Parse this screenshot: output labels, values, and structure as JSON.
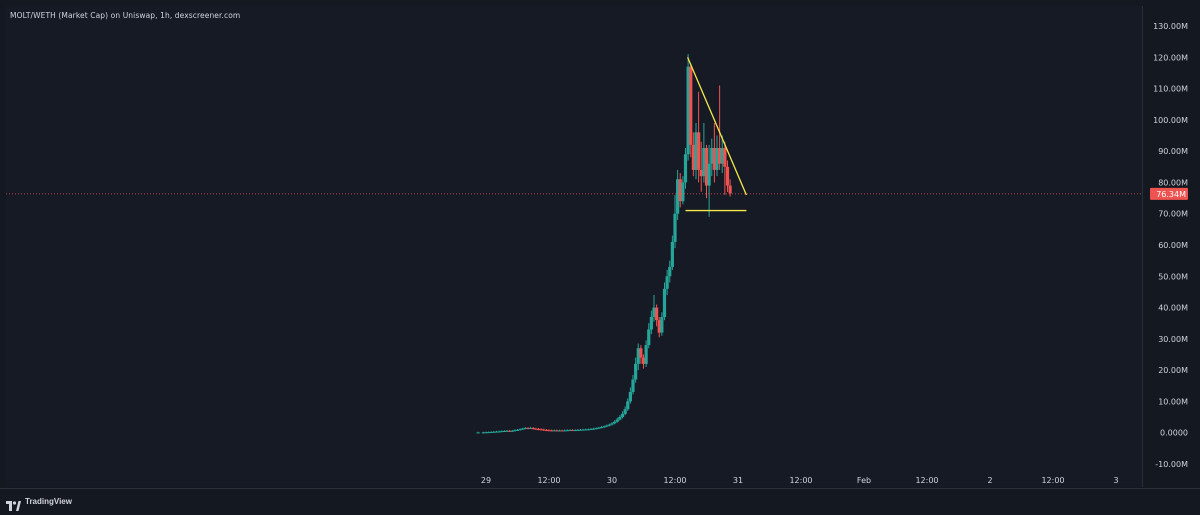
{
  "header": {
    "title": "MOLT/WETH (Market Cap) on Uniswap, 1h, dexscreener.com"
  },
  "footer": {
    "brand": "TradingView",
    "brand_icon": "tradingview-logo-icon"
  },
  "colors": {
    "up": "#26a69a",
    "down": "#ef5350",
    "trendline": "#f5e94a",
    "price_label_bg": "#ef5350",
    "background": "#161a25",
    "axis_text": "#d1d4dc"
  },
  "chart_data": {
    "type": "candlestick",
    "interval": "1h",
    "y_unit": "M",
    "ylim": [
      -10,
      130
    ],
    "y_ticks": [
      "130.00M",
      "120.00M",
      "110.00M",
      "100.00M",
      "90.00M",
      "80.00M",
      "70.00M",
      "60.00M",
      "50.00M",
      "40.00M",
      "30.00M",
      "20.00M",
      "10.00M",
      "0.0000",
      "-10.00M"
    ],
    "y_tick_values": [
      130,
      120,
      110,
      100,
      90,
      80,
      70,
      60,
      50,
      40,
      30,
      20,
      10,
      0,
      -10
    ],
    "x_ticks": [
      "29",
      "12:00",
      "30",
      "12:00",
      "31",
      "12:00",
      "Feb",
      "12:00",
      "2",
      "12:00",
      "3"
    ],
    "x_tick_hours": [
      0,
      12,
      24,
      36,
      48,
      60,
      72,
      84,
      96,
      108,
      120
    ],
    "current_price_label": "76.34M",
    "current_price": 76.34,
    "ohlc": [
      [
        -1.5,
        0.1,
        0.1,
        0.3,
        -0.1
      ],
      [
        -0.5,
        0.1,
        0.1,
        0.3,
        -0.1
      ],
      [
        0,
        0.1,
        0.15,
        0.35,
        -0.05
      ],
      [
        0.5,
        0.15,
        0.2,
        0.4,
        0
      ],
      [
        1,
        0.2,
        0.25,
        0.45,
        0.05
      ],
      [
        1.5,
        0.25,
        0.3,
        0.55,
        0.1
      ],
      [
        2,
        0.3,
        0.35,
        0.6,
        0.15
      ],
      [
        2.5,
        0.35,
        0.4,
        0.65,
        0.2
      ],
      [
        3,
        0.4,
        0.5,
        0.75,
        0.2
      ],
      [
        3.5,
        0.5,
        0.55,
        0.8,
        0.3
      ],
      [
        4,
        0.55,
        0.6,
        0.85,
        0.35
      ],
      [
        4.5,
        0.6,
        0.55,
        0.85,
        0.3
      ],
      [
        5,
        0.55,
        0.6,
        0.9,
        0.35
      ],
      [
        5.5,
        0.6,
        0.8,
        1.1,
        0.4
      ],
      [
        6,
        0.8,
        0.9,
        1.2,
        0.6
      ],
      [
        6.5,
        0.9,
        1.1,
        1.4,
        0.7
      ],
      [
        7,
        1.1,
        1.3,
        1.6,
        0.9
      ],
      [
        7.5,
        1.3,
        1.5,
        1.8,
        1.1
      ],
      [
        8,
        1.5,
        1.4,
        1.8,
        1.1
      ],
      [
        8.5,
        1.4,
        1.5,
        1.9,
        1.2
      ],
      [
        9,
        1.5,
        1.3,
        1.8,
        1.0
      ],
      [
        9.5,
        1.3,
        1.2,
        1.6,
        0.9
      ],
      [
        10,
        1.2,
        1.1,
        1.5,
        0.8
      ],
      [
        10.5,
        1.1,
        1.0,
        1.4,
        0.7
      ],
      [
        11,
        1.0,
        0.9,
        1.3,
        0.6
      ],
      [
        11.5,
        0.9,
        0.8,
        1.2,
        0.5
      ],
      [
        12,
        0.8,
        0.75,
        1.1,
        0.5
      ],
      [
        12.5,
        0.75,
        0.7,
        1.0,
        0.45
      ],
      [
        13,
        0.7,
        0.75,
        1.0,
        0.45
      ],
      [
        13.5,
        0.75,
        0.7,
        1.0,
        0.45
      ],
      [
        14,
        0.7,
        0.72,
        0.95,
        0.5
      ],
      [
        14.5,
        0.72,
        0.7,
        0.95,
        0.45
      ],
      [
        15,
        0.7,
        0.75,
        1.0,
        0.45
      ],
      [
        15.5,
        0.75,
        0.8,
        1.05,
        0.5
      ],
      [
        16,
        0.8,
        0.85,
        1.1,
        0.55
      ],
      [
        16.5,
        0.85,
        0.8,
        1.1,
        0.55
      ],
      [
        17,
        0.8,
        0.85,
        1.1,
        0.55
      ],
      [
        17.5,
        0.85,
        0.9,
        1.15,
        0.6
      ],
      [
        18,
        0.9,
        0.95,
        1.2,
        0.65
      ],
      [
        18.5,
        0.95,
        1.0,
        1.25,
        0.7
      ],
      [
        19,
        1.0,
        1.05,
        1.3,
        0.75
      ],
      [
        19.5,
        1.05,
        1.1,
        1.35,
        0.8
      ],
      [
        20,
        1.1,
        1.2,
        1.45,
        0.85
      ],
      [
        20.5,
        1.2,
        1.3,
        1.6,
        0.95
      ],
      [
        21,
        1.3,
        1.45,
        1.7,
        1.05
      ],
      [
        21.5,
        1.45,
        1.6,
        1.9,
        1.2
      ],
      [
        22,
        1.6,
        1.8,
        2.1,
        1.4
      ],
      [
        22.5,
        1.8,
        2.0,
        2.3,
        1.55
      ],
      [
        23,
        2.0,
        2.3,
        2.6,
        1.8
      ],
      [
        23.5,
        2.3,
        2.6,
        2.9,
        2.0
      ],
      [
        24,
        2.6,
        3.0,
        3.4,
        2.3
      ],
      [
        24.5,
        3.0,
        3.5,
        4.0,
        2.7
      ],
      [
        25,
        3.5,
        4.2,
        4.8,
        3.2
      ],
      [
        25.5,
        4.2,
        5.0,
        5.6,
        3.9
      ],
      [
        26,
        5.0,
        6.0,
        6.8,
        4.6
      ],
      [
        26.5,
        6.0,
        7.5,
        8.4,
        5.6
      ],
      [
        27,
        7.5,
        10.0,
        11.0,
        7.0
      ],
      [
        27.5,
        10.0,
        13.0,
        14.5,
        9.3
      ],
      [
        28,
        13.0,
        17.0,
        18.5,
        12.3
      ],
      [
        28.5,
        17.0,
        22.0,
        24.0,
        16.0
      ],
      [
        29,
        22.0,
        27.0,
        28.5,
        20.0
      ],
      [
        29.5,
        27.0,
        24.0,
        28.0,
        22.0
      ],
      [
        30,
        24.0,
        22.0,
        25.0,
        20.5
      ],
      [
        30.5,
        22.0,
        28.0,
        29.5,
        21.0
      ],
      [
        31,
        28.0,
        33.0,
        35.0,
        27.0
      ],
      [
        31.5,
        33.0,
        37.0,
        39.0,
        31.5
      ],
      [
        32,
        37.0,
        40.0,
        44.0,
        35.5
      ],
      [
        32.5,
        40.0,
        36.0,
        41.0,
        34.0
      ],
      [
        33,
        36.0,
        32.0,
        37.0,
        30.5
      ],
      [
        33.5,
        32.0,
        37.0,
        38.5,
        31.0
      ],
      [
        34,
        37.0,
        46.0,
        48.0,
        36.0
      ],
      [
        34.5,
        46.0,
        50.0,
        52.0,
        44.0
      ],
      [
        35,
        50.0,
        53.0,
        55.0,
        48.0
      ],
      [
        35.5,
        53.0,
        61.0,
        63.0,
        52.0
      ],
      [
        36,
        61.0,
        70.0,
        76.0,
        59.0
      ],
      [
        36.5,
        70.0,
        81.0,
        84.0,
        68.0
      ],
      [
        37,
        81.0,
        74.0,
        83.0,
        72.0
      ],
      [
        37.5,
        74.0,
        80.0,
        82.0,
        73.0
      ],
      [
        38,
        80.0,
        89.0,
        91.0,
        78.0
      ],
      [
        38.5,
        89.0,
        117.0,
        121.0,
        87.0
      ],
      [
        39,
        117.0,
        92.0,
        118.0,
        88.0
      ],
      [
        39.5,
        92.0,
        84.0,
        96.0,
        82.0
      ],
      [
        40,
        84.0,
        96.0,
        99.0,
        81.0
      ],
      [
        40.5,
        96.0,
        84.0,
        109.0,
        80.0
      ],
      [
        41,
        84.0,
        82.0,
        93.0,
        77.0
      ],
      [
        41.5,
        82.0,
        91.0,
        99.0,
        80.0
      ],
      [
        42,
        91.0,
        79.0,
        92.0,
        75.0
      ],
      [
        42.5,
        79.0,
        86.0,
        92.0,
        69.0
      ],
      [
        43,
        86.0,
        91.0,
        94.0,
        82.0
      ],
      [
        43.5,
        91.0,
        84.0,
        99.0,
        80.0
      ],
      [
        44,
        84.0,
        91.0,
        95.0,
        82.0
      ],
      [
        44.5,
        91.0,
        86.0,
        111.0,
        84.0
      ],
      [
        45,
        86.0,
        91.0,
        95.0,
        83.0
      ],
      [
        45.5,
        91.0,
        85.0,
        93.0,
        76.0
      ],
      [
        46,
        85.0,
        79.0,
        87.0,
        77.0
      ],
      [
        46.5,
        79.0,
        76.5,
        81.0,
        75.5
      ]
    ],
    "annotations": [
      {
        "type": "trendline",
        "from": [
          38.4,
          120.0
        ],
        "to": [
          49.6,
          76.0
        ]
      },
      {
        "type": "trendline",
        "from": [
          38.0,
          71.0
        ],
        "to": [
          49.6,
          71.0
        ]
      },
      {
        "type": "hline",
        "value": 76.34,
        "style": "dotted"
      }
    ]
  }
}
